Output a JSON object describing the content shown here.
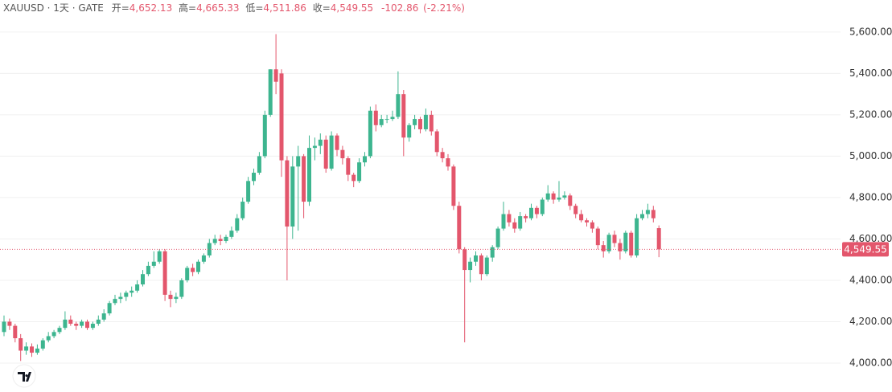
{
  "chart_data": {
    "type": "candlestick",
    "header": {
      "symbol": "XAUUSD · 1天 · GATE",
      "open_label": "开=",
      "open": {
        "value": 4652.13,
        "label": "4,652.13"
      },
      "high_label": "高=",
      "high": {
        "value": 4665.33,
        "label": "4,665.33"
      },
      "low_label": "低=",
      "low": {
        "value": 4511.86,
        "label": "4,511.86"
      },
      "close_label": "收=",
      "close": {
        "value": 4549.55,
        "label": "4,549.55"
      },
      "change": "-102.86",
      "change_pct": "(-2.21%)"
    },
    "up_color": "#3db58f",
    "down_color": "#e3566c",
    "ylim": [
      3860,
      5755
    ],
    "yticks": [
      {
        "value": 4000,
        "label": "4,000.00"
      },
      {
        "value": 4200,
        "label": "4,200.00"
      },
      {
        "value": 4400,
        "label": "4,400.00"
      },
      {
        "value": 4600,
        "label": "4,600.00"
      },
      {
        "value": 4800,
        "label": "4,800.00"
      },
      {
        "value": 5000,
        "label": "5,000.00"
      },
      {
        "value": 5200,
        "label": "5,200.00"
      },
      {
        "value": 5400,
        "label": "5,400.00"
      },
      {
        "value": 5600,
        "label": "5,600.00"
      }
    ],
    "grid": true,
    "last_price": {
      "value": 4549.55,
      "label": "4,549.55"
    },
    "ohlc": [
      [
        4150,
        4230,
        4130,
        4200
      ],
      [
        4200,
        4215,
        4160,
        4180
      ],
      [
        4180,
        4190,
        4100,
        4120
      ],
      [
        4120,
        4140,
        4010,
        4060
      ],
      [
        4060,
        4100,
        4040,
        4080
      ],
      [
        4080,
        4095,
        4030,
        4050
      ],
      [
        4050,
        4090,
        4040,
        4070
      ],
      [
        4070,
        4120,
        4060,
        4110
      ],
      [
        4110,
        4150,
        4100,
        4130
      ],
      [
        4130,
        4160,
        4120,
        4150
      ],
      [
        4150,
        4180,
        4140,
        4170
      ],
      [
        4170,
        4250,
        4160,
        4210
      ],
      [
        4210,
        4230,
        4180,
        4190
      ],
      [
        4190,
        4200,
        4160,
        4180
      ],
      [
        4180,
        4210,
        4170,
        4200
      ],
      [
        4200,
        4210,
        4160,
        4170
      ],
      [
        4170,
        4200,
        4160,
        4190
      ],
      [
        4190,
        4230,
        4180,
        4210
      ],
      [
        4210,
        4260,
        4200,
        4240
      ],
      [
        4240,
        4300,
        4230,
        4290
      ],
      [
        4290,
        4330,
        4280,
        4310
      ],
      [
        4310,
        4340,
        4290,
        4320
      ],
      [
        4320,
        4350,
        4300,
        4340
      ],
      [
        4340,
        4370,
        4320,
        4350
      ],
      [
        4350,
        4400,
        4340,
        4380
      ],
      [
        4380,
        4450,
        4370,
        4430
      ],
      [
        4430,
        4490,
        4420,
        4470
      ],
      [
        4470,
        4540,
        4460,
        4490
      ],
      [
        4490,
        4550,
        4480,
        4540
      ],
      [
        4540,
        4550,
        4300,
        4330
      ],
      [
        4330,
        4350,
        4270,
        4310
      ],
      [
        4310,
        4340,
        4290,
        4320
      ],
      [
        4320,
        4410,
        4310,
        4400
      ],
      [
        4400,
        4470,
        4390,
        4460
      ],
      [
        4460,
        4480,
        4420,
        4440
      ],
      [
        4440,
        4500,
        4430,
        4490
      ],
      [
        4490,
        4530,
        4480,
        4520
      ],
      [
        4520,
        4600,
        4510,
        4580
      ],
      [
        4580,
        4620,
        4570,
        4600
      ],
      [
        4600,
        4620,
        4570,
        4590
      ],
      [
        4590,
        4620,
        4580,
        4610
      ],
      [
        4610,
        4660,
        4600,
        4640
      ],
      [
        4640,
        4720,
        4630,
        4700
      ],
      [
        4700,
        4800,
        4690,
        4780
      ],
      [
        4780,
        4900,
        4770,
        4880
      ],
      [
        4880,
        4940,
        4860,
        4920
      ],
      [
        4920,
        5020,
        4910,
        5000
      ],
      [
        5000,
        5220,
        4990,
        5200
      ],
      [
        5200,
        5420,
        5190,
        5420
      ],
      [
        5420,
        5590,
        5300,
        5360
      ],
      [
        5400,
        5420,
        4900,
        4980
      ],
      [
        4980,
        5000,
        4400,
        4660
      ],
      [
        4660,
        5000,
        4600,
        4950
      ],
      [
        4950,
        5050,
        4640,
        5000
      ],
      [
        5000,
        5010,
        4700,
        4780
      ],
      [
        4780,
        5100,
        4760,
        5040
      ],
      [
        5040,
        5090,
        4980,
        5050
      ],
      [
        5050,
        5110,
        5010,
        5080
      ],
      [
        5080,
        5100,
        4920,
        4940
      ],
      [
        4940,
        5120,
        4930,
        5100
      ],
      [
        5100,
        5110,
        5000,
        5030
      ],
      [
        5030,
        5050,
        4960,
        4990
      ],
      [
        4990,
        5000,
        4880,
        4910
      ],
      [
        4910,
        4920,
        4850,
        4880
      ],
      [
        4880,
        4990,
        4870,
        4970
      ],
      [
        4970,
        5020,
        4950,
        5000
      ],
      [
        5000,
        5240,
        4990,
        5220
      ],
      [
        5220,
        5250,
        5120,
        5150
      ],
      [
        5150,
        5200,
        5140,
        5180
      ],
      [
        5180,
        5200,
        5160,
        5180
      ],
      [
        5180,
        5220,
        5170,
        5190
      ],
      [
        5190,
        5410,
        5180,
        5300
      ],
      [
        5300,
        5320,
        5000,
        5090
      ],
      [
        5090,
        5160,
        5070,
        5150
      ],
      [
        5150,
        5200,
        5130,
        5180
      ],
      [
        5180,
        5190,
        5110,
        5130
      ],
      [
        5130,
        5230,
        5120,
        5200
      ],
      [
        5200,
        5220,
        5100,
        5120
      ],
      [
        5120,
        5130,
        5000,
        5020
      ],
      [
        5020,
        5040,
        4970,
        4990
      ],
      [
        4990,
        5010,
        4930,
        4950
      ],
      [
        4950,
        4960,
        4740,
        4760
      ],
      [
        4760,
        4780,
        4530,
        4550
      ],
      [
        4550,
        4560,
        4100,
        4450
      ],
      [
        4450,
        4510,
        4390,
        4490
      ],
      [
        4490,
        4540,
        4470,
        4520
      ],
      [
        4520,
        4530,
        4400,
        4430
      ],
      [
        4430,
        4520,
        4420,
        4510
      ],
      [
        4510,
        4570,
        4490,
        4560
      ],
      [
        4560,
        4660,
        4550,
        4650
      ],
      [
        4650,
        4780,
        4640,
        4720
      ],
      [
        4720,
        4740,
        4660,
        4680
      ],
      [
        4680,
        4700,
        4630,
        4650
      ],
      [
        4650,
        4730,
        4640,
        4710
      ],
      [
        4710,
        4720,
        4680,
        4700
      ],
      [
        4700,
        4770,
        4690,
        4750
      ],
      [
        4750,
        4760,
        4700,
        4720
      ],
      [
        4720,
        4800,
        4710,
        4790
      ],
      [
        4790,
        4860,
        4780,
        4820
      ],
      [
        4820,
        4830,
        4770,
        4790
      ],
      [
        4790,
        4880,
        4780,
        4800
      ],
      [
        4800,
        4830,
        4790,
        4810
      ],
      [
        4810,
        4820,
        4740,
        4760
      ],
      [
        4760,
        4770,
        4700,
        4720
      ],
      [
        4720,
        4740,
        4680,
        4690
      ],
      [
        4690,
        4700,
        4660,
        4680
      ],
      [
        4680,
        4690,
        4630,
        4650
      ],
      [
        4650,
        4660,
        4550,
        4570
      ],
      [
        4570,
        4590,
        4510,
        4540
      ],
      [
        4540,
        4630,
        4530,
        4620
      ],
      [
        4620,
        4640,
        4560,
        4580
      ],
      [
        4580,
        4600,
        4500,
        4540
      ],
      [
        4540,
        4640,
        4530,
        4630
      ],
      [
        4630,
        4640,
        4510,
        4520
      ],
      [
        4520,
        4720,
        4510,
        4700
      ],
      [
        4700,
        4740,
        4690,
        4720
      ],
      [
        4720,
        4770,
        4700,
        4740
      ],
      [
        4740,
        4760,
        4680,
        4700
      ],
      [
        4652.13,
        4665.33,
        4511.86,
        4549.55
      ]
    ]
  }
}
